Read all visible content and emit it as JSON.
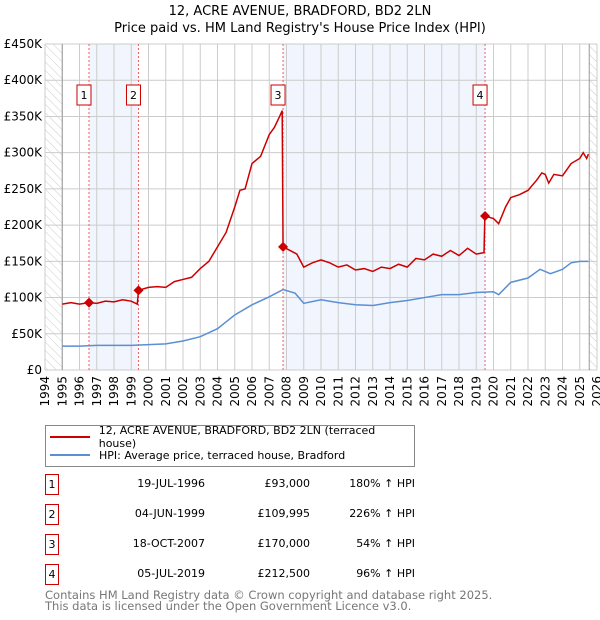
{
  "chart_data": {
    "type": "line",
    "title": "12, ACRE AVENUE, BRADFORD, BD2 2LN",
    "subtitle": "Price paid vs. HM Land Registry's House Price Index (HPI)",
    "xlim": [
      1994,
      2026
    ],
    "ylim": [
      0,
      450000
    ],
    "grid": true,
    "x_ticks": [
      "1994",
      "1995",
      "1996",
      "1997",
      "1998",
      "1999",
      "2000",
      "2001",
      "2002",
      "2003",
      "2004",
      "2005",
      "2006",
      "2007",
      "2008",
      "2009",
      "2010",
      "2011",
      "2012",
      "2013",
      "2014",
      "2015",
      "2016",
      "2017",
      "2018",
      "2019",
      "2020",
      "2021",
      "2022",
      "2023",
      "2024",
      "2025",
      "2026"
    ],
    "y_ticks": [
      {
        "v": 0,
        "label": "£0"
      },
      {
        "v": 50000,
        "label": "£50K"
      },
      {
        "v": 100000,
        "label": "£100K"
      },
      {
        "v": 150000,
        "label": "£150K"
      },
      {
        "v": 200000,
        "label": "£200K"
      },
      {
        "v": 250000,
        "label": "£250K"
      },
      {
        "v": 300000,
        "label": "£300K"
      },
      {
        "v": 350000,
        "label": "£350K"
      },
      {
        "v": 400000,
        "label": "£400K"
      },
      {
        "v": 450000,
        "label": "£450K"
      }
    ],
    "series": [
      {
        "name": "12, ACRE AVENUE, BRADFORD, BD2 2LN (terraced house)",
        "color": "#cc0000",
        "x": [
          1995,
          1995.5,
          1996,
          1996.55,
          1997,
          1997.5,
          1998,
          1998.5,
          1999,
          1999.35,
          1999.42,
          2000,
          2000.5,
          2001,
          2001.5,
          2002,
          2002.5,
          2003,
          2003.5,
          2004,
          2004.5,
          2005,
          2005.3,
          2005.6,
          2006,
          2006.5,
          2007,
          2007.3,
          2007.6,
          2007.75,
          2007.8,
          2008.2,
          2008.6,
          2009,
          2009.5,
          2010,
          2010.5,
          2011,
          2011.5,
          2012,
          2012.5,
          2013,
          2013.5,
          2014,
          2014.5,
          2015,
          2015.5,
          2016,
          2016.5,
          2017,
          2017.5,
          2018,
          2018.5,
          2019,
          2019.45,
          2019.5,
          2020,
          2020.3,
          2020.7,
          2021,
          2021.5,
          2022,
          2022.5,
          2022.8,
          2023,
          2023.2,
          2023.5,
          2024,
          2024.5,
          2025,
          2025.2,
          2025.4,
          2025.5
        ],
        "y": [
          91000,
          93000,
          91000,
          93000,
          92000,
          95000,
          94000,
          97000,
          95000,
          91000,
          109995,
          114000,
          115000,
          114000,
          122000,
          125000,
          128000,
          140000,
          150000,
          170000,
          190000,
          225000,
          248000,
          250000,
          285000,
          295000,
          325000,
          335000,
          350000,
          358000,
          170000,
          165000,
          160000,
          142000,
          148000,
          152000,
          148000,
          142000,
          145000,
          138000,
          140000,
          136000,
          142000,
          140000,
          146000,
          142000,
          154000,
          152000,
          160000,
          157000,
          165000,
          158000,
          168000,
          160000,
          162000,
          212500,
          209000,
          202000,
          225000,
          238000,
          242000,
          248000,
          262000,
          272000,
          270000,
          258000,
          270000,
          268000,
          285000,
          292000,
          300000,
          292000,
          298000
        ]
      },
      {
        "name": "HPI: Average price, terraced house, Bradford",
        "color": "#5b8fd4",
        "x": [
          1995,
          1996,
          1997,
          1998,
          1999,
          2000,
          2001,
          2002,
          2003,
          2004,
          2005,
          2006,
          2007,
          2007.8,
          2008.5,
          2009,
          2010,
          2011,
          2012,
          2013,
          2014,
          2015,
          2016,
          2017,
          2018,
          2019,
          2020,
          2020.3,
          2021,
          2022,
          2022.7,
          2023.3,
          2024,
          2024.5,
          2025,
          2025.5
        ],
        "y": [
          33000,
          33000,
          34000,
          34000,
          34000,
          35000,
          36000,
          40000,
          46000,
          57000,
          76000,
          90000,
          101000,
          111000,
          106000,
          92000,
          97000,
          93000,
          90000,
          89000,
          93000,
          96000,
          100000,
          104000,
          104000,
          107000,
          108000,
          104000,
          121000,
          127000,
          139000,
          133000,
          139000,
          148000,
          150000,
          150000
        ]
      }
    ],
    "sales": [
      {
        "n": "1",
        "x": 1996.55,
        "y": 93000,
        "date": "19-JUL-1996",
        "price": "£93,000",
        "hpi": "180% ↑ HPI"
      },
      {
        "n": "2",
        "x": 1999.42,
        "y": 109995,
        "date": "04-JUN-1999",
        "price": "£109,995",
        "hpi": "226% ↑ HPI"
      },
      {
        "n": "3",
        "x": 2007.8,
        "y": 170000,
        "date": "18-OCT-2007",
        "price": "£170,000",
        "hpi": "54% ↑ HPI"
      },
      {
        "n": "4",
        "x": 2019.51,
        "y": 212500,
        "date": "05-JUL-2019",
        "price": "£212,500",
        "hpi": "96% ↑ HPI"
      }
    ],
    "legend_placement": "below"
  },
  "footer": {
    "line1": "Contains HM Land Registry data © Crown copyright and database right 2025.",
    "line2": "This data is licensed under the Open Government Licence v3.0."
  }
}
